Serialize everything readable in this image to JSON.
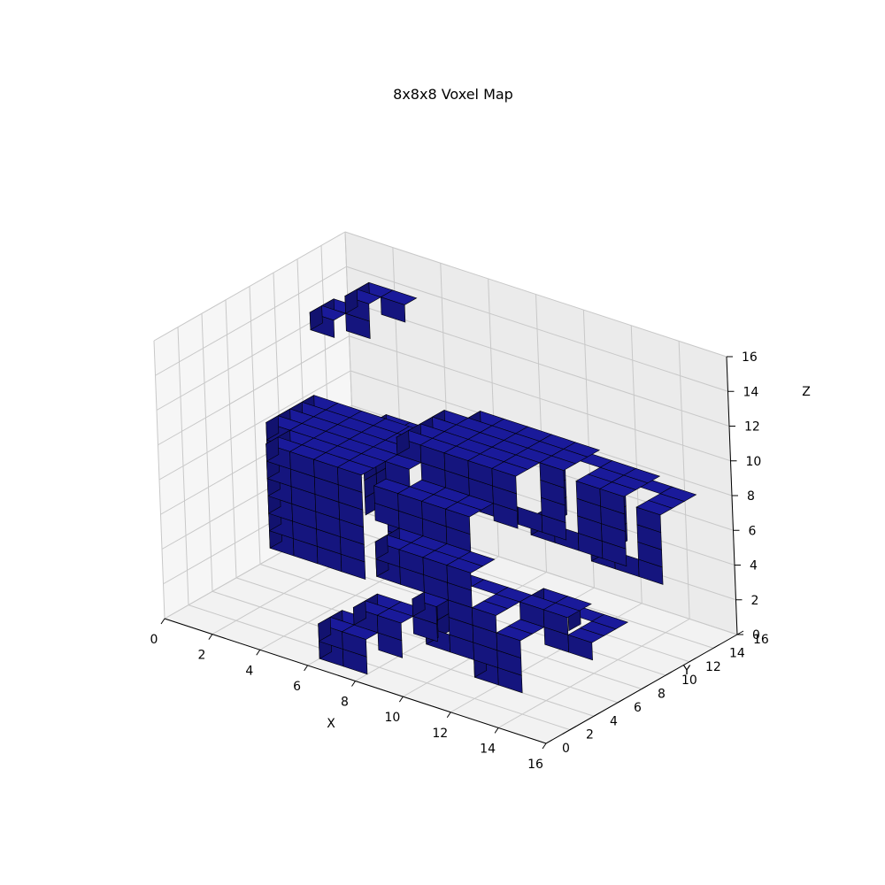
{
  "chart_data": {
    "type": "voxel",
    "title": "8x8x8 Voxel Map",
    "xlabel": "X",
    "ylabel": "Y",
    "zlabel": "Z",
    "xlim": [
      0,
      16
    ],
    "ylim": [
      0,
      16
    ],
    "zlim": [
      0,
      16
    ],
    "x_ticks": [
      0,
      2,
      4,
      6,
      8,
      10,
      12,
      14,
      16
    ],
    "y_ticks": [
      0,
      2,
      4,
      6,
      8,
      10,
      12,
      14,
      16
    ],
    "z_ticks": [
      0,
      2,
      4,
      6,
      8,
      10,
      12,
      14,
      16
    ],
    "grid": true,
    "colors": {
      "voxel_face": "#1a1a9a",
      "voxel_edge": "#000000",
      "pane_floor": "#f2f2f2",
      "pane_back": "#ebebeb",
      "pane_side": "#f6f6f6",
      "grid": "#c8c8c8"
    },
    "voxels": [
      {
        "x": [
          1,
          7
        ],
        "y": [
          7,
          11
        ],
        "z": [
          3,
          9
        ]
      },
      {
        "x": [
          2,
          6
        ],
        "y": [
          5,
          7
        ],
        "z": [
          3,
          9
        ]
      },
      {
        "x": [
          3,
          5
        ],
        "y": [
          11,
          13
        ],
        "z": [
          3,
          8
        ]
      },
      {
        "x": [
          6,
          11
        ],
        "y": [
          8,
          12
        ],
        "z": [
          7,
          10
        ]
      },
      {
        "x": [
          7,
          12
        ],
        "y": [
          10,
          13
        ],
        "z": [
          6,
          10
        ]
      },
      {
        "x": [
          10,
          14
        ],
        "y": [
          11,
          14
        ],
        "z": [
          5,
          9
        ]
      },
      {
        "x": [
          12,
          15
        ],
        "y": [
          12,
          15
        ],
        "z": [
          4,
          8
        ]
      },
      {
        "x": [
          6,
          10
        ],
        "y": [
          6,
          9
        ],
        "z": [
          6,
          8
        ]
      },
      {
        "x": [
          7,
          11
        ],
        "y": [
          4,
          6
        ],
        "z": [
          4,
          6
        ]
      },
      {
        "x": [
          9,
          12
        ],
        "y": [
          4,
          7
        ],
        "z": [
          1,
          4
        ]
      },
      {
        "x": [
          11,
          13
        ],
        "y": [
          4,
          7
        ],
        "z": [
          0,
          3
        ]
      },
      {
        "x": [
          12,
          14
        ],
        "y": [
          6,
          8
        ],
        "z": [
          2,
          4
        ]
      },
      {
        "x": [
          13,
          15
        ],
        "y": [
          6,
          9
        ],
        "z": [
          2,
          3
        ]
      },
      {
        "x": [
          7,
          9
        ],
        "y": [
          2,
          4
        ],
        "z": [
          1,
          3
        ]
      },
      {
        "x": [
          6,
          8
        ],
        "y": [
          1,
          3
        ],
        "z": [
          0,
          2
        ]
      },
      {
        "x": [
          9,
          10
        ],
        "y": [
          3,
          5
        ],
        "z": [
          2,
          4
        ]
      },
      {
        "x": [
          2,
          3
        ],
        "y": [
          9,
          11
        ],
        "z": [
          14,
          15
        ]
      },
      {
        "x": [
          3,
          4
        ],
        "y": [
          10,
          11
        ],
        "z": [
          14,
          16
        ]
      },
      {
        "x": [
          3,
          5
        ],
        "y": [
          11,
          12
        ],
        "z": [
          15,
          16
        ]
      }
    ]
  }
}
